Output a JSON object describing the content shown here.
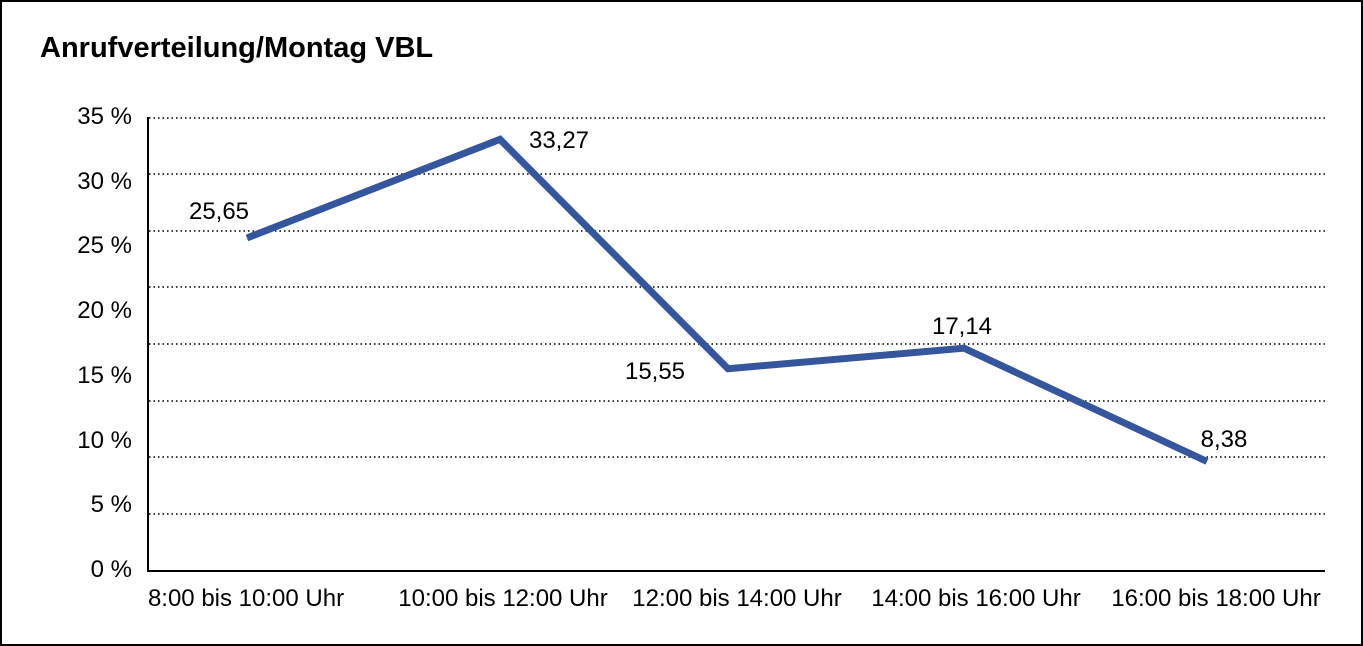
{
  "chart_data": {
    "type": "line",
    "title": "Anrufverteilung/Montag VBL",
    "categories": [
      "8:00 bis 10:00 Uhr",
      "10:00 bis 12:00 Uhr",
      "12:00 bis 14:00 Uhr",
      "14:00 bis 16:00 Uhr",
      "16:00 bis 18:00 Uhr"
    ],
    "series": [
      {
        "name": "Anrufverteilung Montag VBL",
        "values": [
          25.65,
          33.27,
          15.55,
          17.14,
          8.38
        ],
        "value_labels": [
          "25,65",
          "33,27",
          "15,55",
          "17,14",
          "8,38"
        ]
      }
    ],
    "xlabel": "",
    "ylabel": "",
    "ylim": [
      0,
      35
    ],
    "y_tick_step": 5,
    "y_tick_labels": [
      "35 %",
      "30 %",
      "25 %",
      "20 %",
      "15 %",
      "10 %",
      "5 %",
      "0 %"
    ],
    "grid": "horizontal-dotted",
    "legend_position": "none",
    "line_color": "#35569D"
  }
}
